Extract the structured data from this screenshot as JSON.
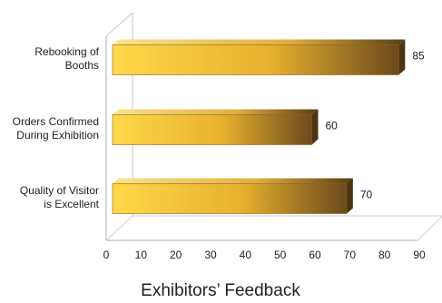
{
  "chart_data": {
    "type": "bar",
    "orientation": "horizontal",
    "three_d": true,
    "title": "Exhibitors’ Feedback",
    "categories": [
      [
        "Rebooking of",
        "Booths"
      ],
      [
        "Orders Confirmed",
        "During Exhibition"
      ],
      [
        "Quality of Visitor",
        "is Excellent"
      ]
    ],
    "values": [
      85,
      60,
      70
    ],
    "data_labels": [
      "85",
      "60",
      "70"
    ],
    "xlim": [
      0,
      90
    ],
    "x_ticks": [
      "0",
      "10",
      "20",
      "30",
      "40",
      "50",
      "60",
      "70",
      "80",
      "90"
    ],
    "grid": false,
    "legend": "none",
    "colors": {
      "bar_light": "#ffd84a",
      "bar_mid": "#e8b12e",
      "bar_dark": "#6b4a1c",
      "bar_top": "#f5d26a",
      "bar_side": "#4a3414",
      "axis": "#b0b0b0"
    }
  }
}
